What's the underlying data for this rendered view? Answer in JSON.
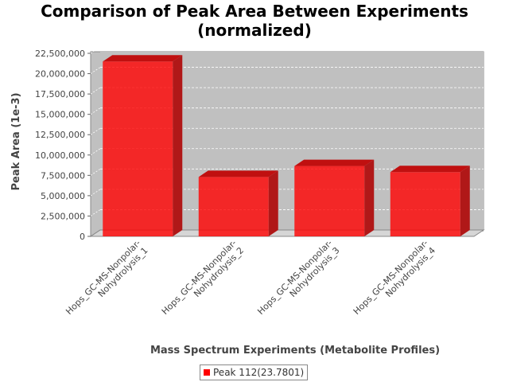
{
  "chart_data": {
    "type": "bar",
    "title": "Comparison of Peak Area Between Experiments (normalized)",
    "title_lines": [
      "Comparison of Peak Area Between Experiments",
      "(normalized)"
    ],
    "xlabel": "Mass Spectrum Experiments (Metabolite Profiles)",
    "ylabel": "Peak Area (1e-3)",
    "categories": [
      "Hops_GC-MS-Nonpolar-Nohydrolysis_1",
      "Hops_GC-MS-Nonpolar-Nohydrolysis_2",
      "Hops_GC-MS-Nonpolar-Nohydrolysis_3",
      "Hops_GC-MS-Nonpolar-Nohydrolysis_4"
    ],
    "category_label_lines": [
      [
        "Hops_GC-MS-Nonpolar-",
        "Nohydrolysis_1"
      ],
      [
        "Hops_GC-MS-Nonpolar-",
        "Nohydrolysis_2"
      ],
      [
        "Hops_GC-MS-Nonpolar-",
        "Nohydrolysis_3"
      ],
      [
        "Hops_GC-MS-Nonpolar-",
        "Nohydrolysis_4"
      ]
    ],
    "series": [
      {
        "name": "Peak 112(23.7801)",
        "values": [
          21500000,
          7300000,
          8650000,
          7900000
        ],
        "color": "#ff0000"
      }
    ],
    "ylim": [
      0,
      22500000
    ],
    "yticks": [
      0,
      2500000,
      5000000,
      7500000,
      10000000,
      12500000,
      15000000,
      17500000,
      20000000,
      22500000
    ],
    "ytick_labels": [
      "0",
      "2,500,000",
      "5,000,000",
      "7,500,000",
      "10,000,000",
      "12,500,000",
      "15,000,000",
      "17,500,000",
      "20,000,000",
      "22,500,000"
    ],
    "grid": true,
    "legend_position": "bottom",
    "plot_background": "#c0c0c0",
    "render_style": "3d"
  }
}
